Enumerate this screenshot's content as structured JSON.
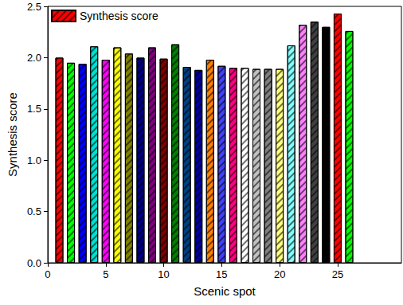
{
  "chart_data": {
    "type": "bar",
    "x_label": "Scenic spot",
    "y_label": "Synthesis score",
    "x": [
      1,
      2,
      3,
      4,
      5,
      6,
      7,
      8,
      9,
      10,
      11,
      12,
      13,
      14,
      15,
      16,
      17,
      18,
      19,
      20,
      21,
      22,
      23,
      24,
      25,
      26
    ],
    "series": [
      {
        "name": "Synthesis score",
        "values": [
          2.0,
          1.95,
          1.94,
          2.11,
          1.98,
          2.1,
          2.04,
          2.0,
          2.1,
          1.99,
          2.13,
          1.91,
          1.88,
          1.98,
          1.92,
          1.9,
          1.9,
          1.89,
          1.89,
          1.89,
          2.12,
          2.32,
          2.35,
          2.3,
          2.43,
          2.26
        ]
      }
    ],
    "colors": [
      "#ff0000",
      "#00ff00",
      "#0000ff",
      "#00e0d0",
      "#ff00ff",
      "#ffff00",
      "#808000",
      "#000080",
      "#800080",
      "#800000",
      "#008000",
      "#004080",
      "#0000a0",
      "#ff8000",
      "#4040ff",
      "#ff0080",
      "#ffffff",
      "#c0c0c0",
      "#808080",
      "#ffff80",
      "#80ffff",
      "#ff80ff",
      "#404040",
      "#000000",
      "#ff0000",
      "#00ff00"
    ],
    "xlim": [
      0,
      30.5
    ],
    "xticks": [
      0,
      5,
      10,
      15,
      20,
      25
    ],
    "ylim": [
      0,
      2.5
    ],
    "yticks": [
      {
        "value": 0,
        "label": "0.0"
      },
      {
        "value": 0.5,
        "label": "0.5"
      },
      {
        "value": 1,
        "label": "1.0"
      },
      {
        "value": 1.5,
        "label": "1.5"
      },
      {
        "value": 2,
        "label": "2.0"
      },
      {
        "value": 2.5,
        "label": "2.5"
      }
    ],
    "legend": "upper left",
    "grid": false
  }
}
